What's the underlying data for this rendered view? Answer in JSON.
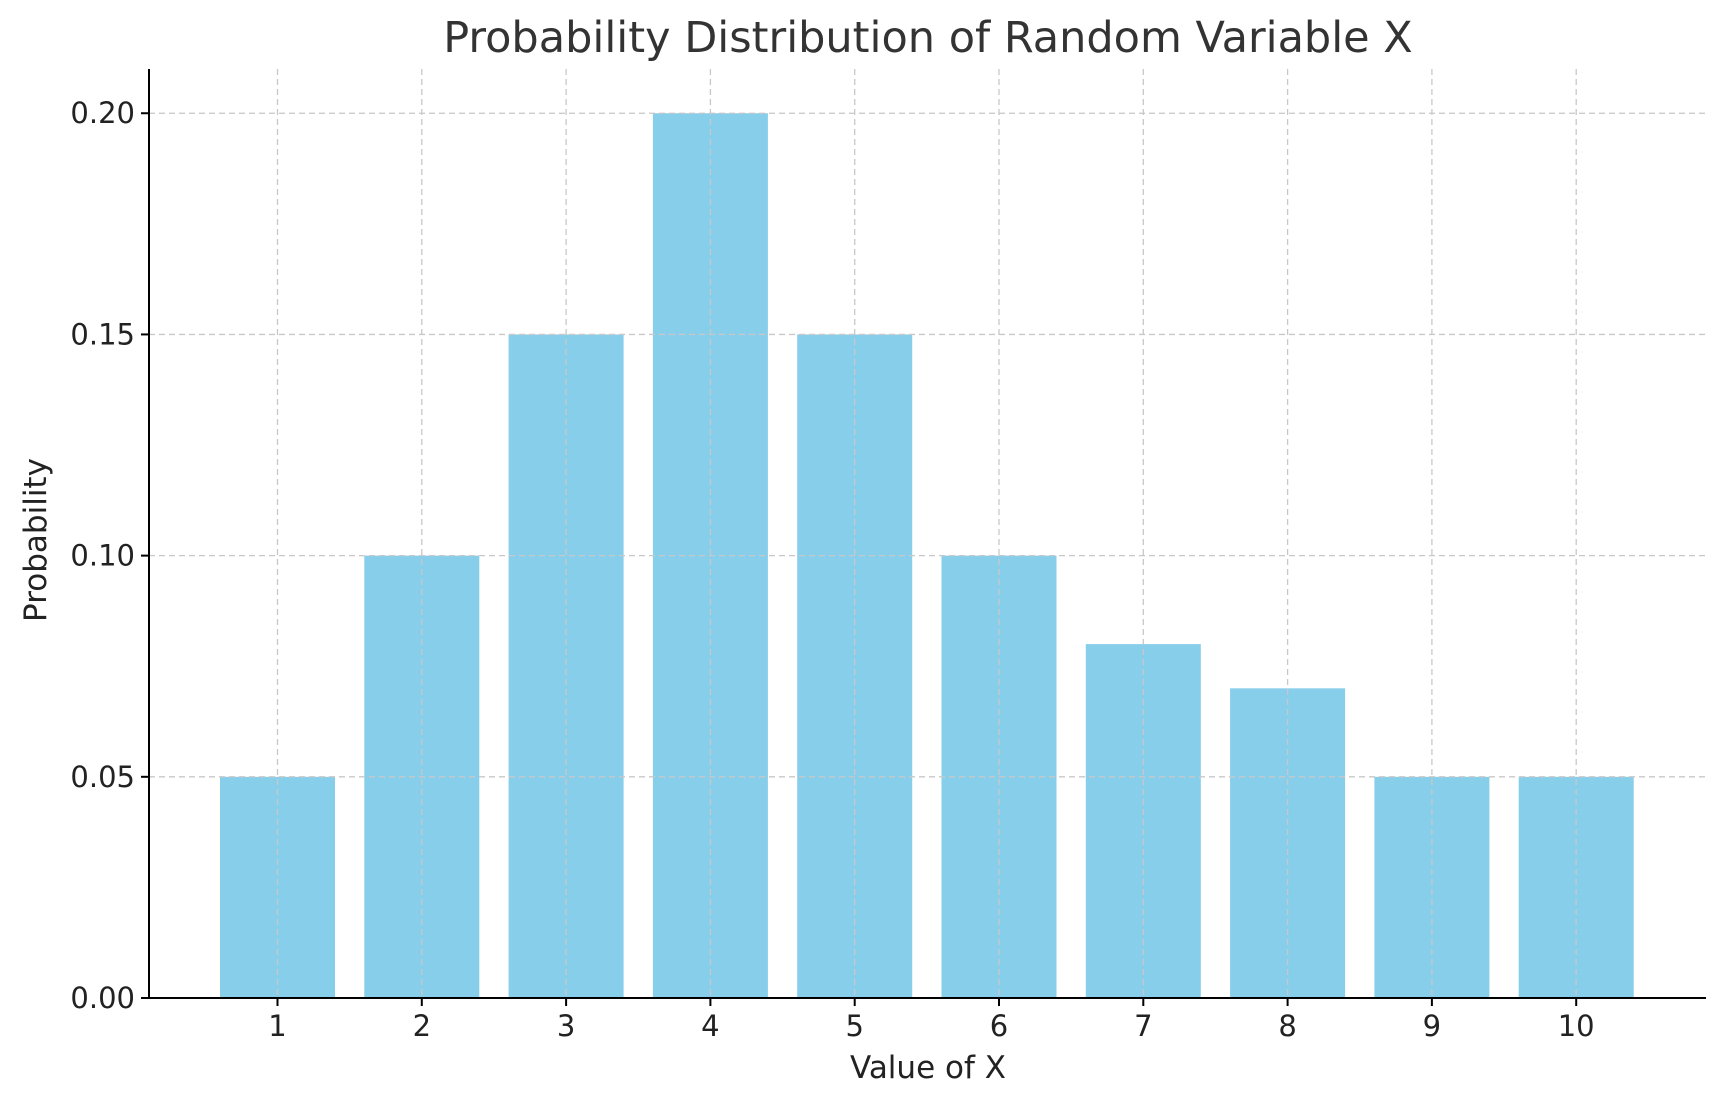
{
  "chart_data": {
    "type": "bar",
    "title": "Probability Distribution of Random Variable X",
    "xlabel": "Value of X",
    "ylabel": "Probability",
    "categories": [
      "1",
      "2",
      "3",
      "4",
      "5",
      "6",
      "7",
      "8",
      "9",
      "10"
    ],
    "values": [
      0.05,
      0.1,
      0.15,
      0.2,
      0.15,
      0.1,
      0.08,
      0.07,
      0.05,
      0.05
    ],
    "ylim": [
      0,
      0.21
    ],
    "yticks": [
      "0.00",
      "0.05",
      "0.10",
      "0.15",
      "0.20"
    ],
    "ytick_values": [
      0,
      0.05,
      0.1,
      0.15,
      0.2
    ],
    "grid": true,
    "grid_style": "dashed",
    "bar_color": "#87ceeb",
    "legend": "none"
  }
}
